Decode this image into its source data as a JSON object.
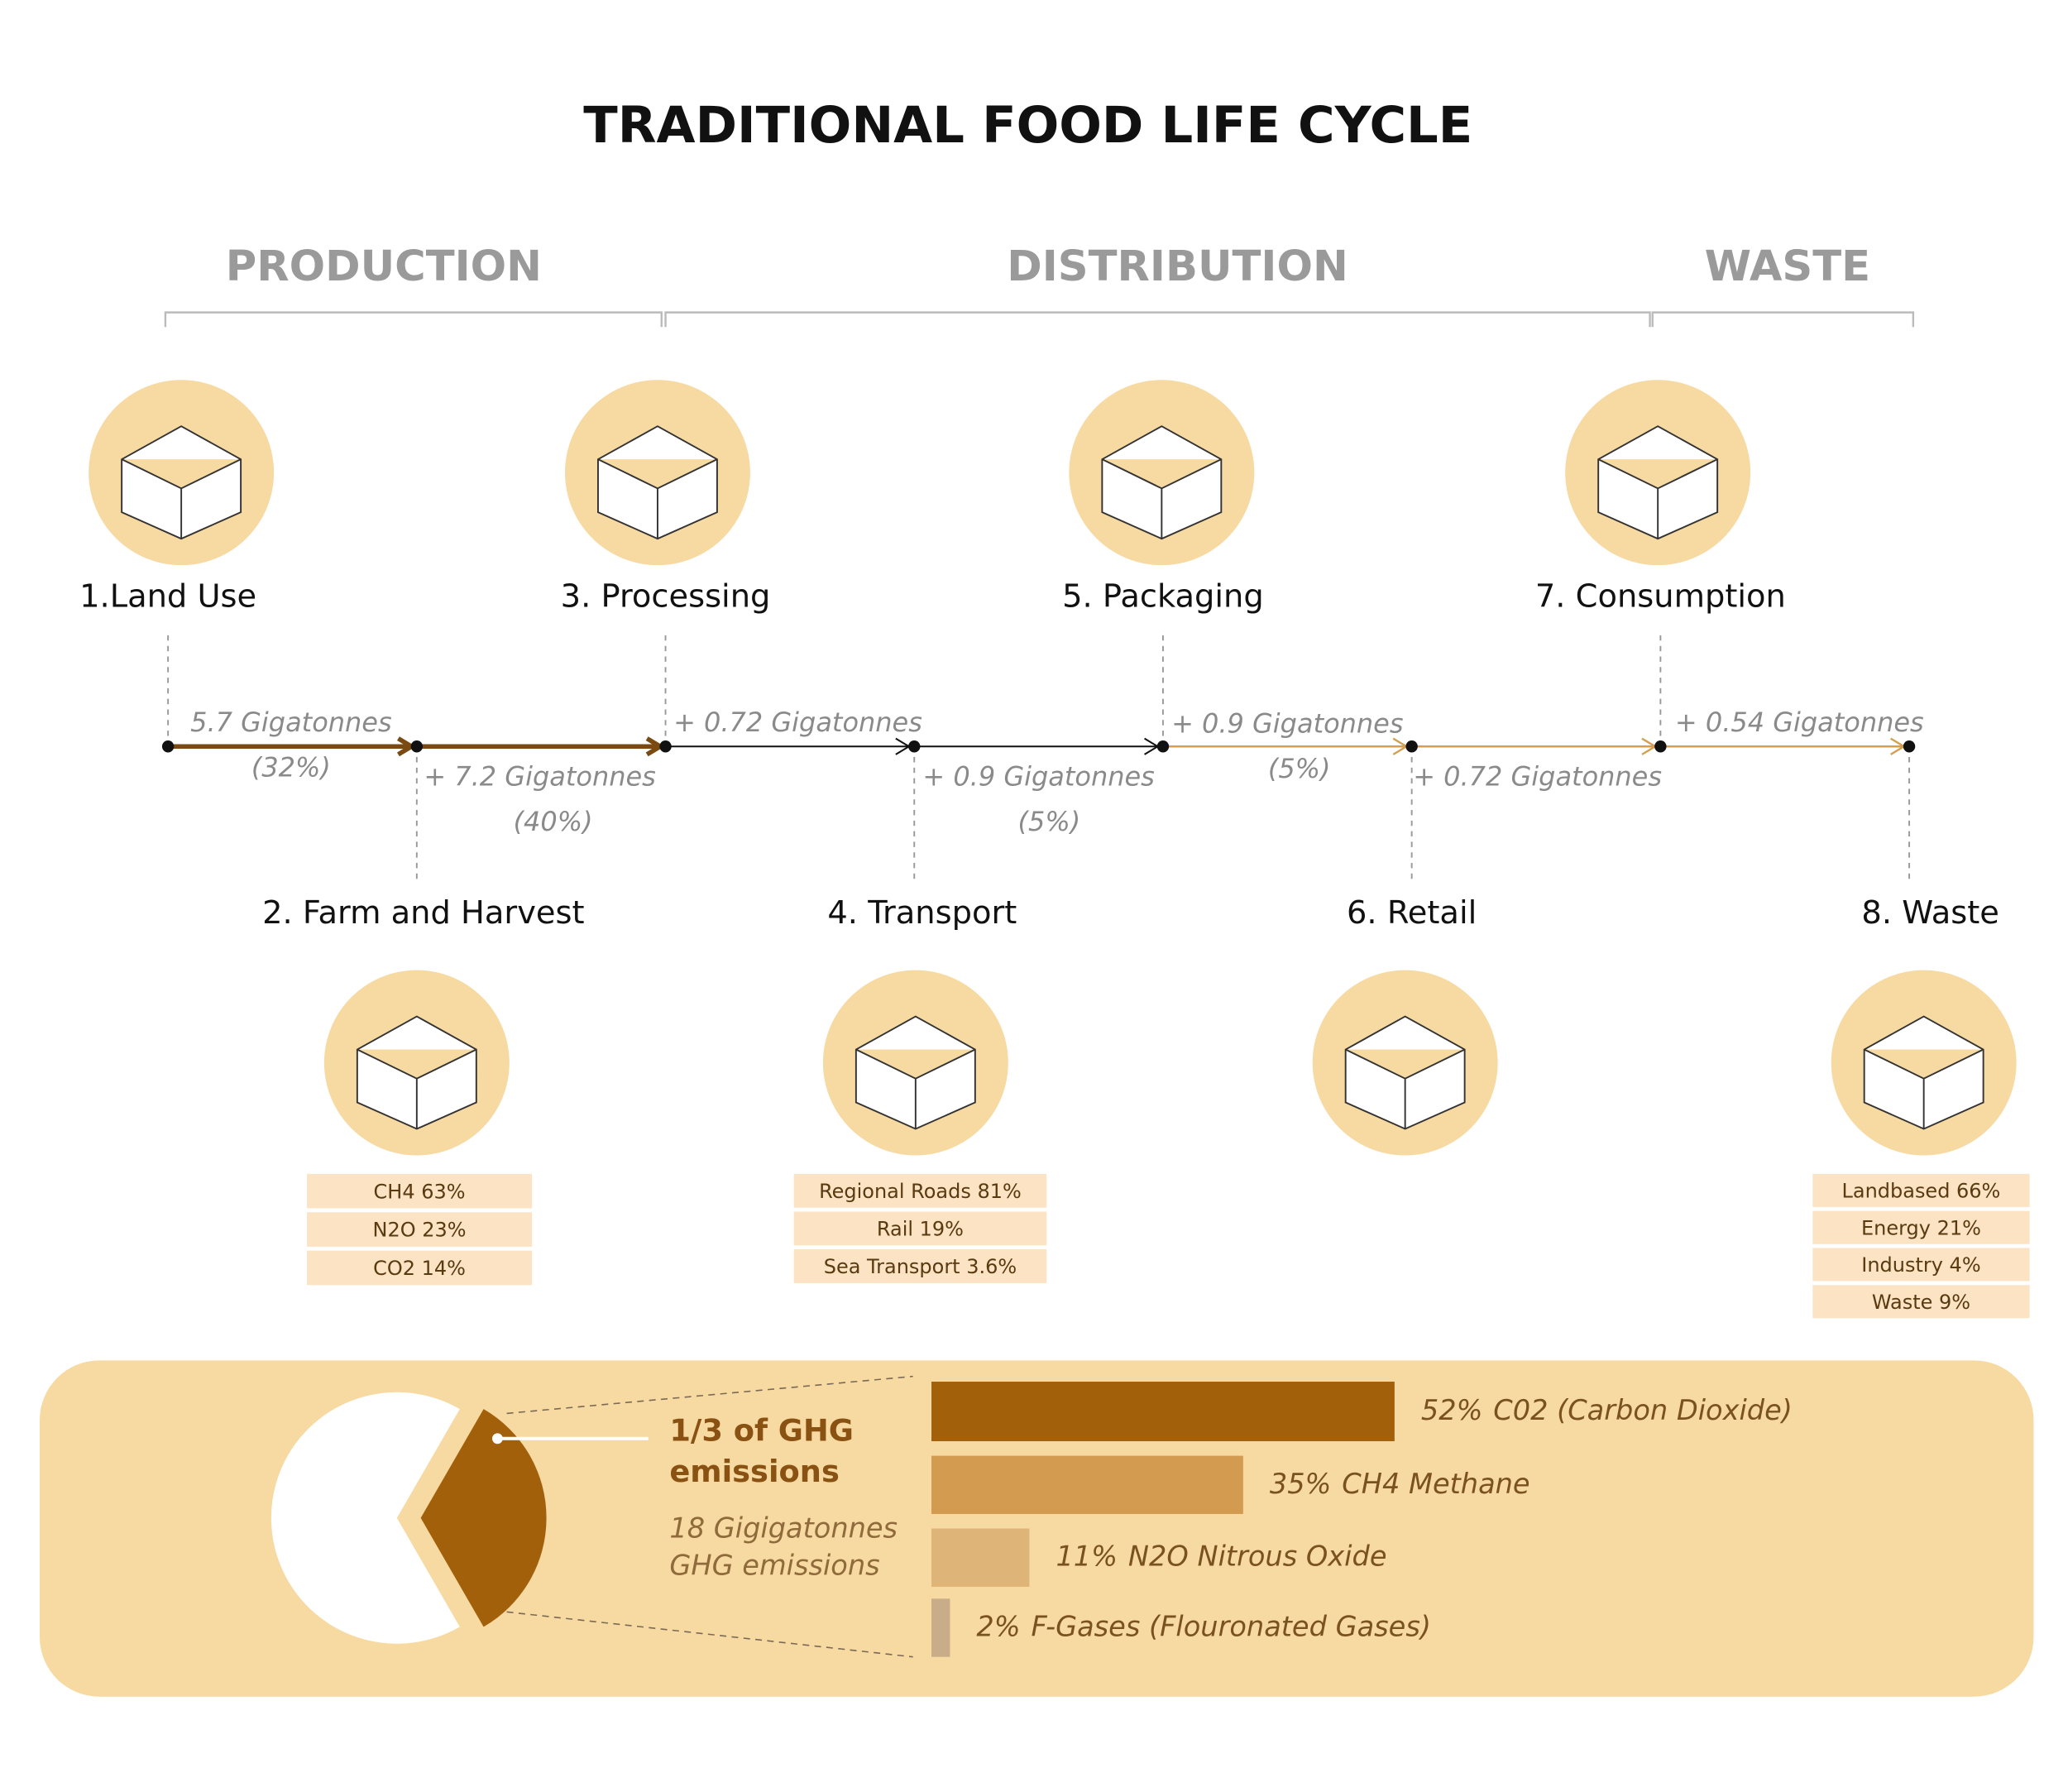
{
  "title": "TRADITIONAL FOOD LIFE CYCLE",
  "phases": [
    "PRODUCTION",
    "DISTRIBUTION",
    "WASTE"
  ],
  "stages": [
    "1.Land Use",
    "2. Farm and Harvest",
    "3. Processing",
    "4. Transport",
    "5. Packaging",
    "6. Retail",
    "7. Consumption",
    "8. Waste"
  ],
  "flows": [
    {
      "amount": "5.7 Gigatonnes",
      "share": "(32%)"
    },
    {
      "amount": "+ 7.2 Gigatonnes",
      "share": "(40%)"
    },
    {
      "amount": "+ 0.72 Gigatonnes"
    },
    {
      "amount": "+ 0.9 Gigatonnes",
      "share": "(5%)"
    },
    {
      "amount": "+ 0.9 Gigatonnes",
      "share": "(5%)"
    },
    {
      "amount": "+ 0.72 Gigatonnes"
    },
    {
      "amount": "+ 0.54 Gigatonnes"
    }
  ],
  "breakdowns": {
    "farm": [
      "CH4 63%",
      "N2O 23%",
      "CO2 14%"
    ],
    "transport": [
      "Regional Roads 81%",
      "Rail 19%",
      "Sea Transport 3.6%"
    ],
    "waste": [
      "Landbased 66%",
      "Energy 21%",
      "Industry 4%",
      "Waste 9%"
    ]
  },
  "summary": {
    "headline": [
      "1/3 of GHG",
      "emissions"
    ],
    "note": [
      "18 Gigigatonnes",
      "GHG emissions"
    ],
    "gases": [
      {
        "value": 52,
        "value_label": "52%",
        "name": "C02 (Carbon Dioxide)",
        "color": "#a3600b"
      },
      {
        "value": 35,
        "value_label": "35%",
        "name": "CH4 Methane",
        "color": "#d39b50"
      },
      {
        "value": 11,
        "value_label": "11%",
        "name": "N2O Nitrous Oxide",
        "color": "#deb478"
      },
      {
        "value": 2,
        "value_label": "2%",
        "name": "F-Gases (Flouronated Gases)",
        "color": "#c9ad88"
      }
    ]
  }
}
